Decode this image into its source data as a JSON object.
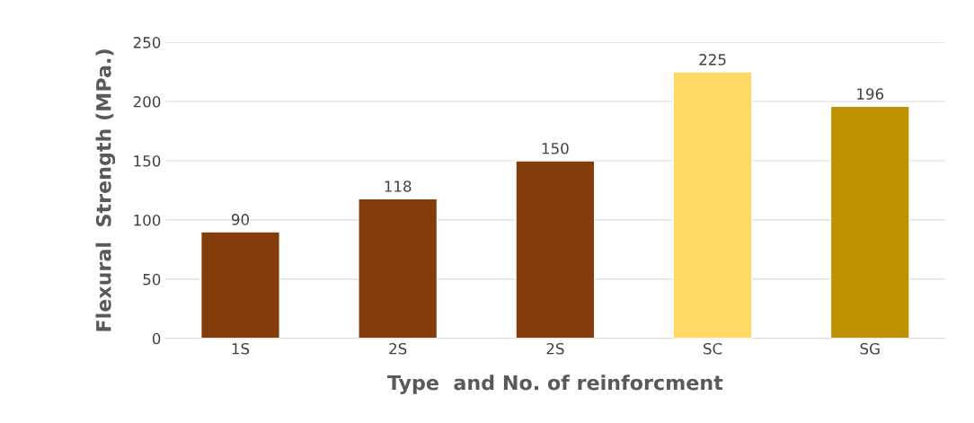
{
  "chart_data": {
    "type": "bar",
    "xlabel": "Type  and No. of reinforcment",
    "ylabel": "Flexural  Strength (MPa.)",
    "categories": [
      "1S",
      "2S",
      "2S",
      "SC",
      "SG"
    ],
    "values": [
      90,
      118,
      150,
      225,
      196
    ],
    "colors": [
      "#843c0c",
      "#843c0c",
      "#843c0c",
      "#ffd966",
      "#bf9000"
    ],
    "ylim": [
      0,
      250
    ],
    "yticks": [
      0,
      50,
      100,
      150,
      200,
      250
    ],
    "grid": "y",
    "data_labels": true
  }
}
